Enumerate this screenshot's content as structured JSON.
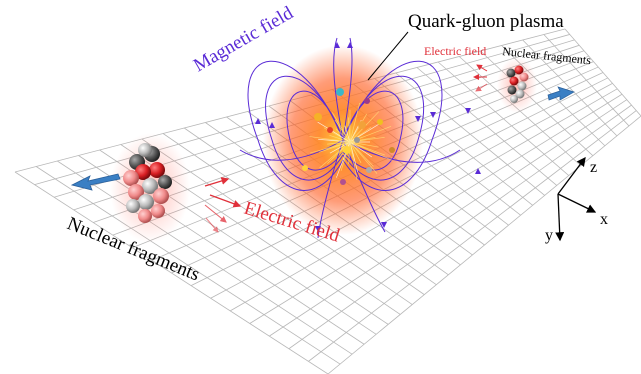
{
  "labels": {
    "magnetic_field": "Magnetic field",
    "qgp": "Quark-gluon plasma",
    "electric_field_top": "Electric field",
    "nuclear_fragments_top": "Nuclear fragments",
    "electric_field_bottom": "Electric field",
    "nuclear_fragments_bottom": "Nuclear fragments"
  },
  "axes": {
    "z": "z",
    "x": "x",
    "y": "y"
  },
  "colors": {
    "magnetic": "#5a2bd6",
    "electric": "#e0303a",
    "plasma_core": "#ffd23c",
    "plasma_outer": "#ff5a1e",
    "momentum_arrow": "#3a7fc4",
    "nucleon_red": "#d81e22",
    "nucleon_dark": "#555555",
    "nucleon_light": "#bbbbbb",
    "grid": "#b8b8b8"
  }
}
